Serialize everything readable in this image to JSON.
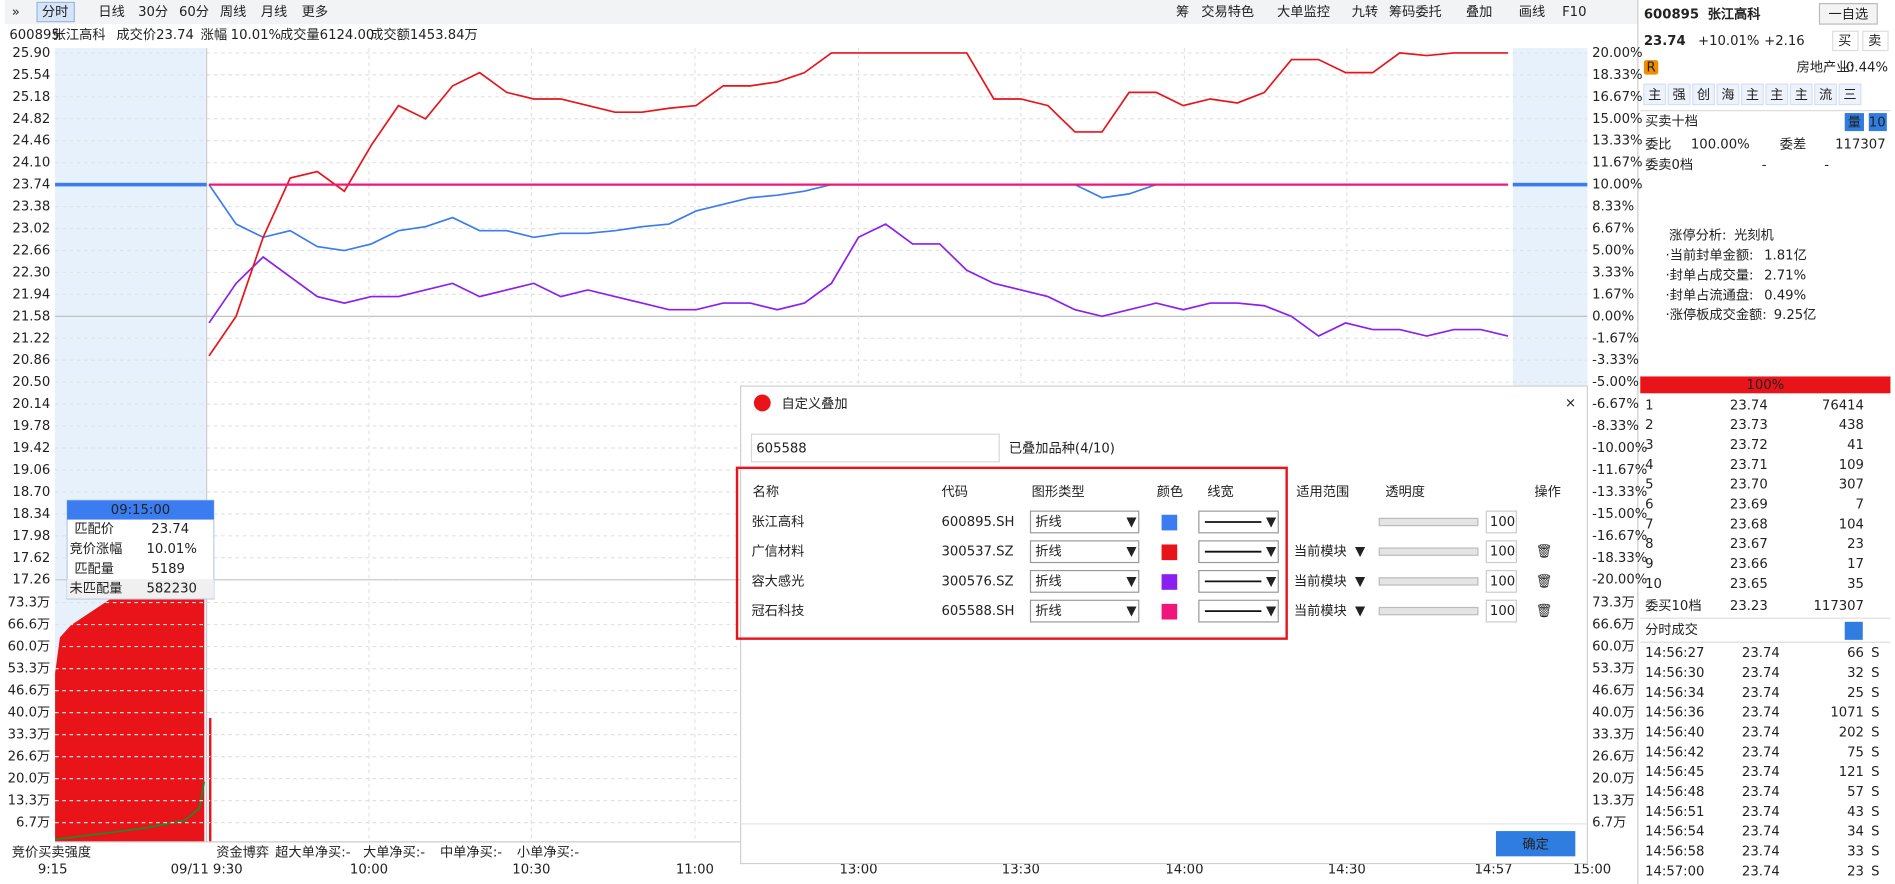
{
  "toolbar": {
    "tabs": [
      "分时",
      "日线",
      "30分",
      "60分",
      "周线",
      "月线",
      "更多"
    ],
    "tools": [
      "筹",
      "交易特色",
      "大单监控",
      "九转",
      "筹码委托",
      "叠加",
      "画线",
      "F10"
    ]
  },
  "info": {
    "code": "600895",
    "name": "张江高科",
    "price_label": "成交价",
    "price": "23.74",
    "change_label": "涨幅",
    "change": "10.01%",
    "volume_label": "成交量",
    "volume": "6124.00",
    "amount_label": "成交额",
    "amount": "1453.84万"
  },
  "price_axis": [
    "25.90",
    "25.54",
    "25.18",
    "24.82",
    "24.46",
    "24.10",
    "23.74",
    "23.38",
    "23.02",
    "22.66",
    "22.30",
    "21.94",
    "21.58",
    "21.22",
    "20.86",
    "20.50",
    "20.14",
    "19.78",
    "19.42",
    "19.06",
    "18.70",
    "18.34",
    "17.98",
    "17.62",
    "17.26"
  ],
  "pct_axis": [
    "20.00%",
    "18.33%",
    "16.67%",
    "15.00%",
    "13.33%",
    "11.67%",
    "10.00%",
    "8.33%",
    "6.67%",
    "5.00%",
    "3.33%",
    "1.67%",
    "0.00%",
    "-1.67%",
    "-3.33%",
    "-5.00%",
    "-6.67%",
    "-8.33%",
    "-10.00%",
    "-11.67%",
    "-13.33%",
    "-15.00%",
    "-16.67%",
    "-18.33%",
    "-20.00%"
  ],
  "volume_axis": [
    "73.3万",
    "66.6万",
    "60.0万",
    "53.3万",
    "46.6万",
    "40.0万",
    "33.3万",
    "26.6万",
    "20.0万",
    "13.3万",
    "6.7万"
  ],
  "time_axis": [
    "9:15",
    "09/11 9:30",
    "10:00",
    "10:30",
    "11:00",
    "13:00",
    "13:30",
    "14:00",
    "14:30",
    "14:57",
    "15:00"
  ],
  "overlay": {
    "ylim": [
      -20,
      20
    ],
    "series": [
      {
        "name": "张江高科",
        "color": "#3b7cf0",
        "values": [
          10,
          7,
          6,
          6.5,
          5.3,
          5,
          5.5,
          6.5,
          6.8,
          7.5,
          6.5,
          6.5,
          6,
          6.3,
          6.3,
          6.5,
          6.8,
          7,
          8,
          8.5,
          9,
          9.2,
          9.5,
          10,
          10,
          10,
          10,
          10,
          10,
          10,
          10,
          10,
          10,
          9,
          9.3,
          10,
          10,
          10,
          10,
          10,
          10,
          10,
          10,
          10,
          10,
          10,
          10,
          10,
          10
        ]
      },
      {
        "name": "广信材料",
        "color": "#e8141a",
        "values": [
          -3,
          0,
          6,
          10.5,
          11,
          9.5,
          13,
          16,
          15,
          17.5,
          18.5,
          17,
          16.5,
          16.5,
          16,
          15.5,
          15.5,
          15.8,
          16,
          17.5,
          17.5,
          17.8,
          18.5,
          20,
          20,
          20,
          20,
          20,
          20,
          16.5,
          16.5,
          16,
          14,
          14,
          17,
          17,
          16,
          16.5,
          16.2,
          17,
          19.5,
          19.5,
          18.5,
          18.5,
          20,
          19.8,
          20,
          20,
          20
        ]
      },
      {
        "name": "容大感光",
        "color": "#8b1ff0",
        "values": [
          -0.5,
          2.5,
          4.5,
          3,
          1.5,
          1,
          1.5,
          1.5,
          2,
          2.5,
          1.5,
          2,
          2.5,
          1.5,
          2,
          1.5,
          1,
          0.5,
          0.5,
          1,
          1,
          0.5,
          1,
          2.5,
          6,
          7,
          5.5,
          5.5,
          3.5,
          2.5,
          2,
          1.5,
          0.5,
          0,
          0.5,
          1,
          0.5,
          1,
          1,
          0.8,
          0,
          -1.5,
          -0.5,
          -1,
          -1,
          -1.5,
          -1,
          -1,
          -1.5
        ]
      },
      {
        "name": "冠石科技",
        "color": "#f0167a",
        "values": [
          10,
          10,
          10,
          10,
          10,
          10,
          10,
          10,
          10,
          10,
          10,
          10,
          10,
          10,
          10,
          10,
          10,
          10,
          10,
          10,
          10,
          10,
          10,
          10,
          10,
          10,
          10,
          10,
          10,
          10,
          10,
          10,
          10,
          10,
          10,
          10,
          10,
          10,
          10,
          10,
          10,
          10,
          10,
          10,
          10,
          10,
          10,
          10,
          10
        ]
      }
    ]
  },
  "tooltip": {
    "time": "09:15:00",
    "rows": [
      [
        "匹配价",
        "23.74"
      ],
      [
        "竞价涨幅",
        "10.01%"
      ],
      [
        "匹配量",
        "5189"
      ],
      [
        "未匹配量",
        "582230"
      ]
    ]
  },
  "bottom_bar": {
    "left": "竞价买卖强度",
    "game": "资金博弈",
    "flows": [
      "超大单净买:-",
      "大单净买:-",
      "中单净买:-",
      "小单净买:-"
    ]
  },
  "dialog": {
    "title": "自定义叠加",
    "search": "605588",
    "count": "已叠加品种(4/10)",
    "headers": [
      "名称",
      "代码",
      "图形类型",
      "颜色",
      "线宽",
      "适用范围",
      "透明度",
      "操作"
    ],
    "rows": [
      {
        "code": "600895.SH",
        "type": "折线",
        "opacity": "100"
      },
      {
        "code": "300537.SZ",
        "type": "折线",
        "scope": "当前模块",
        "opacity": "100"
      },
      {
        "code": "300576.SZ",
        "type": "折线",
        "scope": "当前模块",
        "opacity": "100"
      },
      {
        "code": "605588.SH",
        "type": "折线",
        "scope": "当前模块",
        "opacity": "100"
      }
    ],
    "ok": "确定"
  },
  "quote": {
    "code": "600895",
    "name": "张江高科",
    "watch": "一自选",
    "buy": "买",
    "sell": "卖",
    "price": "23.74",
    "change_pct": "+10.01%",
    "change": "+2.16",
    "industry": "房地产业:",
    "industry_change": "-0.44%",
    "tag": "R",
    "buttons": [
      "主",
      "强",
      "创",
      "海",
      "主",
      "主",
      "主",
      "流",
      "三"
    ],
    "book_title": "买卖十档",
    "book_vol": "量",
    "book_levels": "10",
    "ratio_label": "委比",
    "ratio": "100.00%",
    "diff_label": "委差",
    "diff": "117307",
    "sell0": "委卖0档",
    "sell0_a": "-",
    "sell0_b": "-",
    "limit": [
      [
        "涨停分析:",
        "光刻机"
      ],
      [
        "·当前封单金额:",
        "1.81亿"
      ],
      [
        "·封单占成交量:",
        "2.71%"
      ],
      [
        "·封单占流通盘:",
        "0.49%"
      ],
      [
        "·涨停板成交金额:",
        "9.25亿"
      ]
    ],
    "bar": "100%",
    "bids": [
      [
        "1",
        "23.74",
        "76414"
      ],
      [
        "2",
        "23.73",
        "438"
      ],
      [
        "3",
        "23.72",
        "41"
      ],
      [
        "4",
        "23.71",
        "109"
      ],
      [
        "5",
        "23.70",
        "307"
      ],
      [
        "6",
        "23.69",
        "7"
      ],
      [
        "7",
        "23.68",
        "104"
      ],
      [
        "8",
        "23.67",
        "23"
      ],
      [
        "9",
        "23.66",
        "17"
      ],
      [
        "10",
        "23.65",
        "35"
      ]
    ],
    "buy10": [
      "委买10档",
      "23.23",
      "117307"
    ],
    "trades_title": "分时成交",
    "trades": [
      [
        "14:56:27",
        "23.74",
        "66",
        "S"
      ],
      [
        "14:56:30",
        "23.74",
        "32",
        "S"
      ],
      [
        "14:56:34",
        "23.74",
        "25",
        "S"
      ],
      [
        "14:56:36",
        "23.74",
        "1071",
        "S"
      ],
      [
        "14:56:40",
        "23.74",
        "202",
        "S"
      ],
      [
        "14:56:42",
        "23.74",
        "75",
        "S"
      ],
      [
        "14:56:45",
        "23.74",
        "121",
        "S"
      ],
      [
        "14:56:48",
        "23.74",
        "57",
        "S"
      ],
      [
        "14:56:51",
        "23.74",
        "43",
        "S"
      ],
      [
        "14:56:54",
        "23.74",
        "34",
        "S"
      ],
      [
        "14:56:58",
        "23.74",
        "33",
        "S"
      ],
      [
        "14:57:00",
        "23.74",
        "23",
        "S"
      ]
    ]
  }
}
